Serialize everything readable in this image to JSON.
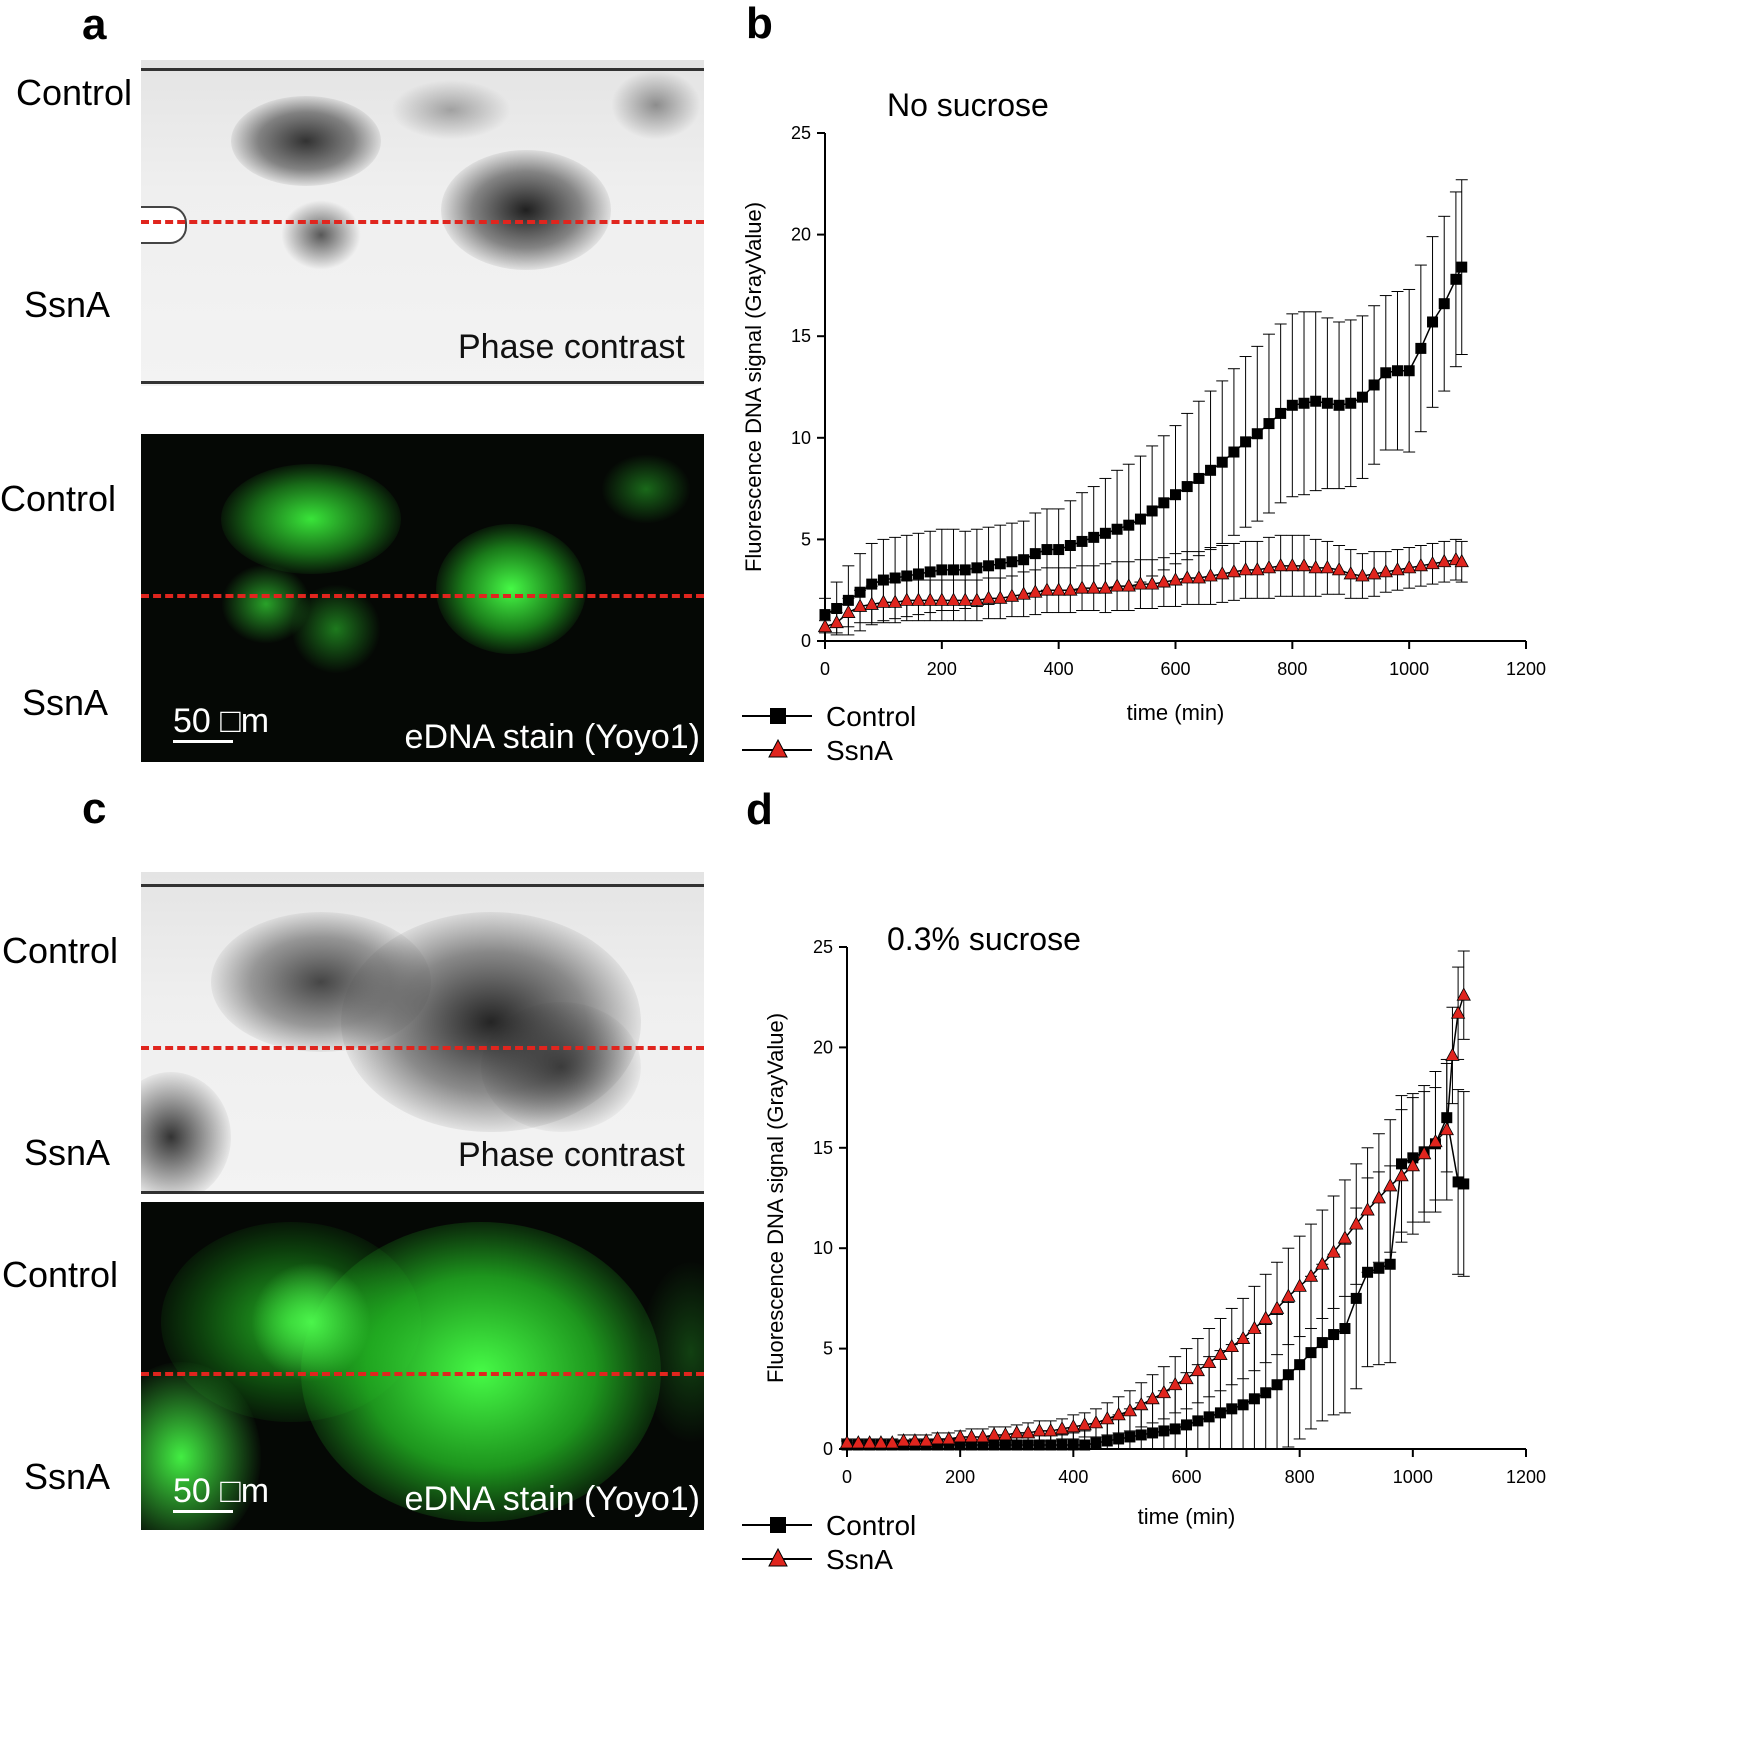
{
  "panels": {
    "a": {
      "letter": "a",
      "phase": {
        "label_top": "Control",
        "label_bottom": "SsnA",
        "caption": "Phase contrast"
      },
      "fluor": {
        "label_top": "Control",
        "label_bottom": "SsnA",
        "caption": "eDNA stain (Yoyo1)",
        "scale": "50 □m"
      }
    },
    "c": {
      "letter": "c",
      "phase": {
        "label_top": "Control",
        "label_bottom": "SsnA",
        "caption": "Phase contrast"
      },
      "fluor": {
        "label_top": "Control",
        "label_bottom": "SsnA",
        "caption": "eDNA stain (Yoyo1)",
        "scale": "50 □m"
      }
    }
  },
  "colors": {
    "control": "#000000",
    "ssna": "#e0251e",
    "dashed_line": "#e0251e",
    "fluorescence": "#3cf03c"
  },
  "chart_data": [
    {
      "id": "b",
      "letter": "b",
      "type": "line",
      "title": "No sucrose",
      "xlabel": "time (min)",
      "ylabel": "Fluorescence DNA signal (GrayValue)",
      "xlim": [
        0,
        1200
      ],
      "ylim": [
        0,
        25
      ],
      "xticks": [
        0,
        200,
        400,
        600,
        800,
        1000,
        1200
      ],
      "yticks": [
        0,
        5,
        10,
        15,
        20,
        25
      ],
      "legend": {
        "position": "bottom-left",
        "entries": [
          "Control",
          "SsnA"
        ]
      },
      "series": [
        {
          "name": "Control",
          "marker": "square",
          "x": [
            0,
            20,
            40,
            60,
            80,
            100,
            120,
            140,
            160,
            180,
            200,
            220,
            240,
            260,
            280,
            300,
            320,
            340,
            360,
            380,
            400,
            420,
            440,
            460,
            480,
            500,
            520,
            540,
            560,
            580,
            600,
            620,
            640,
            660,
            680,
            700,
            720,
            740,
            760,
            780,
            800,
            820,
            840,
            860,
            880,
            900,
            920,
            940,
            960,
            980,
            1000,
            1020,
            1040,
            1060,
            1080,
            1090
          ],
          "y": [
            1.3,
            1.6,
            2.0,
            2.4,
            2.8,
            3.0,
            3.1,
            3.2,
            3.3,
            3.4,
            3.5,
            3.5,
            3.5,
            3.6,
            3.7,
            3.8,
            3.9,
            4.0,
            4.3,
            4.5,
            4.5,
            4.7,
            4.9,
            5.1,
            5.3,
            5.5,
            5.7,
            6.0,
            6.4,
            6.8,
            7.2,
            7.6,
            8.0,
            8.4,
            8.8,
            9.3,
            9.8,
            10.2,
            10.7,
            11.2,
            11.6,
            11.7,
            11.8,
            11.7,
            11.6,
            11.7,
            12.0,
            12.6,
            13.2,
            13.3,
            13.3,
            14.4,
            15.7,
            16.6,
            17.8,
            18.4
          ],
          "err": [
            0.8,
            1.3,
            1.7,
            1.9,
            2.0,
            2.0,
            2.0,
            2.0,
            2.0,
            2.0,
            2.0,
            2.0,
            1.9,
            1.9,
            1.9,
            1.9,
            1.9,
            1.9,
            2.0,
            2.0,
            2.0,
            2.2,
            2.4,
            2.5,
            2.7,
            2.9,
            3.0,
            3.1,
            3.2,
            3.3,
            3.4,
            3.6,
            3.8,
            3.9,
            4.0,
            4.1,
            4.2,
            4.3,
            4.4,
            4.4,
            4.5,
            4.5,
            4.4,
            4.2,
            4.1,
            4.1,
            4.0,
            3.9,
            3.8,
            3.9,
            4.0,
            4.1,
            4.2,
            4.3,
            4.3,
            4.3
          ]
        },
        {
          "name": "SsnA",
          "marker": "triangle",
          "x": [
            0,
            20,
            40,
            60,
            80,
            100,
            120,
            140,
            160,
            180,
            200,
            220,
            240,
            260,
            280,
            300,
            320,
            340,
            360,
            380,
            400,
            420,
            440,
            460,
            480,
            500,
            520,
            540,
            560,
            580,
            600,
            620,
            640,
            660,
            680,
            700,
            720,
            740,
            760,
            780,
            800,
            820,
            840,
            860,
            880,
            900,
            920,
            940,
            960,
            980,
            1000,
            1020,
            1040,
            1060,
            1080,
            1090
          ],
          "y": [
            0.7,
            0.9,
            1.4,
            1.7,
            1.8,
            1.9,
            1.9,
            2.0,
            2.0,
            2.0,
            2.0,
            2.0,
            2.0,
            2.0,
            2.1,
            2.1,
            2.2,
            2.3,
            2.4,
            2.5,
            2.5,
            2.5,
            2.6,
            2.6,
            2.6,
            2.7,
            2.7,
            2.8,
            2.8,
            2.9,
            3.0,
            3.1,
            3.1,
            3.2,
            3.3,
            3.4,
            3.5,
            3.5,
            3.6,
            3.7,
            3.7,
            3.7,
            3.6,
            3.6,
            3.5,
            3.3,
            3.2,
            3.3,
            3.4,
            3.5,
            3.6,
            3.7,
            3.8,
            3.9,
            4.0,
            3.9
          ],
          "err": [
            0.3,
            0.5,
            0.7,
            0.8,
            0.9,
            1.0,
            1.0,
            1.0,
            1.0,
            1.0,
            1.0,
            1.0,
            1.0,
            1.0,
            1.0,
            1.0,
            1.0,
            1.1,
            1.1,
            1.1,
            1.1,
            1.1,
            1.1,
            1.1,
            1.2,
            1.2,
            1.2,
            1.2,
            1.2,
            1.2,
            1.3,
            1.3,
            1.3,
            1.4,
            1.4,
            1.4,
            1.4,
            1.4,
            1.5,
            1.5,
            1.5,
            1.5,
            1.4,
            1.3,
            1.2,
            1.2,
            1.1,
            1.1,
            1.0,
            1.0,
            1.0,
            1.0,
            1.0,
            1.0,
            1.0,
            1.0
          ]
        }
      ]
    },
    {
      "id": "d",
      "letter": "d",
      "type": "line",
      "title": "0.3% sucrose",
      "xlabel": "time (min)",
      "ylabel": "Fluorescence DNA signal (GrayValue)",
      "xlim": [
        0,
        1200
      ],
      "ylim": [
        0,
        25
      ],
      "xticks": [
        0,
        200,
        400,
        600,
        800,
        1000,
        1200
      ],
      "yticks": [
        0,
        5,
        10,
        15,
        20,
        25
      ],
      "legend": {
        "position": "bottom-left",
        "entries": [
          "Control",
          "SsnA"
        ]
      },
      "series": [
        {
          "name": "Control",
          "marker": "square",
          "x": [
            0,
            20,
            40,
            60,
            80,
            100,
            120,
            140,
            160,
            180,
            200,
            220,
            240,
            260,
            280,
            300,
            320,
            340,
            360,
            380,
            400,
            420,
            440,
            460,
            480,
            500,
            520,
            540,
            560,
            580,
            600,
            620,
            640,
            660,
            680,
            700,
            720,
            740,
            760,
            780,
            800,
            820,
            840,
            860,
            880,
            900,
            920,
            940,
            960,
            980,
            1000,
            1020,
            1040,
            1060,
            1080,
            1090
          ],
          "y": [
            0.2,
            0.2,
            0.2,
            0.2,
            0.2,
            0.2,
            0.2,
            0.2,
            0.2,
            0.2,
            0.2,
            0.2,
            0.2,
            0.2,
            0.2,
            0.2,
            0.2,
            0.2,
            0.2,
            0.2,
            0.2,
            0.2,
            0.3,
            0.4,
            0.5,
            0.6,
            0.7,
            0.8,
            0.9,
            1.0,
            1.2,
            1.4,
            1.6,
            1.8,
            2.0,
            2.2,
            2.5,
            2.8,
            3.2,
            3.7,
            4.2,
            4.8,
            5.3,
            5.7,
            6.0,
            7.5,
            8.8,
            9.0,
            9.2,
            14.2,
            14.5,
            14.8,
            15.2,
            16.5,
            13.3,
            13.2
          ],
          "err": [
            0.2,
            0.2,
            0.2,
            0.2,
            0.2,
            0.2,
            0.3,
            0.3,
            0.3,
            0.3,
            0.3,
            0.4,
            0.4,
            0.4,
            0.4,
            0.4,
            0.5,
            0.5,
            0.5,
            0.5,
            0.6,
            0.7,
            0.8,
            1.0,
            1.2,
            1.4,
            1.6,
            1.8,
            2.0,
            2.3,
            2.6,
            2.8,
            3.0,
            3.1,
            3.2,
            3.3,
            3.4,
            3.4,
            3.5,
            3.6,
            3.7,
            3.8,
            3.9,
            4.0,
            4.2,
            4.5,
            4.7,
            4.8,
            4.9,
            3.4,
            3.2,
            3.0,
            2.8,
            2.7,
            4.6,
            4.6
          ]
        },
        {
          "name": "SsnA",
          "marker": "triangle",
          "x": [
            0,
            20,
            40,
            60,
            80,
            100,
            120,
            140,
            160,
            180,
            200,
            220,
            240,
            260,
            280,
            300,
            320,
            340,
            360,
            380,
            400,
            420,
            440,
            460,
            480,
            500,
            520,
            540,
            560,
            580,
            600,
            620,
            640,
            660,
            680,
            700,
            720,
            740,
            760,
            780,
            800,
            820,
            840,
            860,
            880,
            900,
            920,
            940,
            960,
            980,
            1000,
            1020,
            1040,
            1060,
            1070,
            1080,
            1090
          ],
          "y": [
            0.3,
            0.3,
            0.3,
            0.3,
            0.3,
            0.4,
            0.4,
            0.4,
            0.5,
            0.5,
            0.6,
            0.6,
            0.6,
            0.7,
            0.7,
            0.8,
            0.8,
            0.9,
            0.9,
            1.0,
            1.1,
            1.2,
            1.3,
            1.5,
            1.7,
            1.9,
            2.2,
            2.5,
            2.8,
            3.2,
            3.5,
            3.9,
            4.3,
            4.7,
            5.1,
            5.5,
            6.0,
            6.5,
            7.0,
            7.6,
            8.1,
            8.6,
            9.2,
            9.8,
            10.5,
            11.2,
            11.9,
            12.5,
            13.1,
            13.6,
            14.1,
            14.7,
            15.3,
            15.9,
            19.6,
            21.7,
            22.6
          ],
          "err": [
            0.2,
            0.2,
            0.2,
            0.2,
            0.2,
            0.3,
            0.3,
            0.3,
            0.3,
            0.3,
            0.3,
            0.4,
            0.4,
            0.4,
            0.4,
            0.4,
            0.5,
            0.5,
            0.5,
            0.5,
            0.6,
            0.6,
            0.7,
            0.8,
            0.9,
            1.0,
            1.1,
            1.2,
            1.3,
            1.4,
            1.5,
            1.6,
            1.7,
            1.8,
            1.9,
            2.0,
            2.1,
            2.2,
            2.3,
            2.4,
            2.5,
            2.6,
            2.7,
            2.8,
            2.9,
            3.0,
            3.1,
            3.2,
            3.3,
            3.3,
            3.4,
            3.4,
            3.5,
            3.5,
            2.4,
            2.3,
            2.2
          ]
        }
      ]
    }
  ]
}
